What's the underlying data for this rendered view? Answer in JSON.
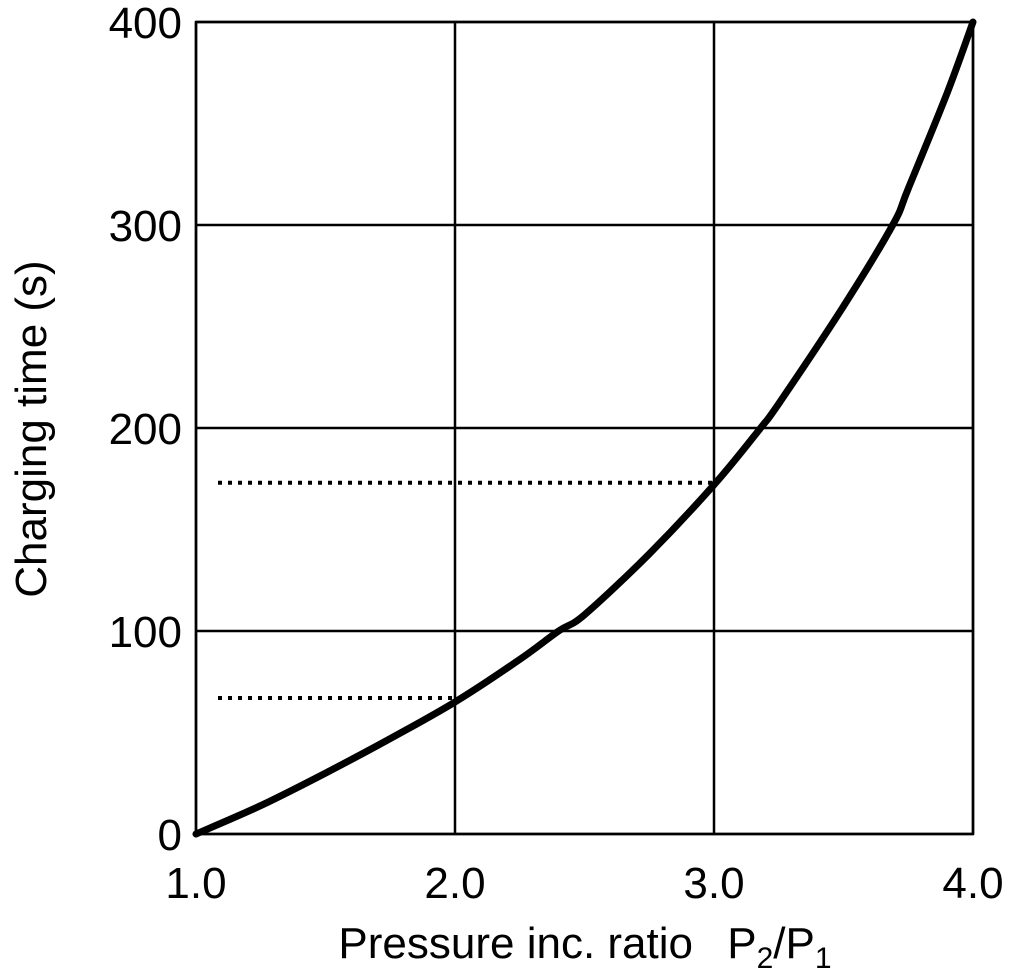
{
  "chart_data": {
    "type": "line",
    "title": "",
    "xlabel": "Pressure inc. ratio",
    "xlabel_symbol": {
      "p2_base": "P",
      "p2_sub": "2",
      "slash": "/",
      "p1_base": "P",
      "p1_sub": "1"
    },
    "ylabel": "Charging time (s)",
    "xlim": [
      1.0,
      4.0
    ],
    "ylim": [
      0,
      400
    ],
    "x_ticks": [
      {
        "value": 1.0,
        "label": "1.0"
      },
      {
        "value": 2.0,
        "label": "2.0"
      },
      {
        "value": 3.0,
        "label": "3.0"
      },
      {
        "value": 4.0,
        "label": "4.0"
      }
    ],
    "y_ticks": [
      {
        "value": 0,
        "label": "0"
      },
      {
        "value": 100,
        "label": "100"
      },
      {
        "value": 200,
        "label": "200"
      },
      {
        "value": 300,
        "label": "300"
      },
      {
        "value": 400,
        "label": "400"
      }
    ],
    "grid": true,
    "series": [
      {
        "x": [
          1.0,
          1.25,
          1.5,
          1.75,
          2.0,
          2.25,
          2.4,
          2.5,
          2.75,
          3.0,
          3.18,
          3.25,
          3.5,
          3.69,
          3.75,
          3.9,
          4.0
        ],
        "y": [
          0,
          14,
          30,
          47,
          65,
          86,
          100,
          108,
          138,
          172,
          200,
          212,
          260,
          300,
          318,
          365,
          400
        ]
      }
    ],
    "reference_lines": [
      {
        "y": 67,
        "x_from": 1.0,
        "x_to": 2.0,
        "style": "dotted"
      },
      {
        "y": 173,
        "x_from": 1.0,
        "x_to": 3.0,
        "style": "dotted"
      }
    ]
  }
}
